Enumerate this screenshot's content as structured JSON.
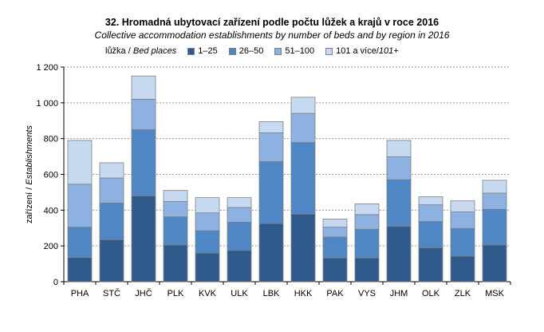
{
  "chart_data": {
    "type": "bar",
    "stacked": true,
    "title": "32. Hromadná ubytovací zařízení podle počtu lůžek a krajů v roce 2016",
    "subtitle": "Collective accommodation establishments by number of beds and by region in 2016",
    "ylabel_cz": "zařízení / ",
    "ylabel_en": "Establishments",
    "legend_title_cz": "lůžka / ",
    "legend_title_en": "Bed places",
    "legend_position": "top",
    "grid": true,
    "ylim": [
      0,
      1200
    ],
    "yticks": [
      "0",
      "200",
      "400",
      "600",
      "800",
      "1 000",
      "1 200"
    ],
    "categories": [
      "PHA",
      "STČ",
      "JHČ",
      "PLK",
      "KVK",
      "ULK",
      "LBK",
      "HKK",
      "PAK",
      "VYS",
      "JHM",
      "OLK",
      "ZLK",
      "MSK"
    ],
    "series": [
      {
        "name": "1–25",
        "color": "#2e5a8c",
        "values": [
          135,
          235,
          480,
          205,
          160,
          175,
          325,
          378,
          133,
          133,
          310,
          190,
          143,
          205
        ]
      },
      {
        "name": "26–50",
        "color": "#4f86c6",
        "values": [
          170,
          205,
          370,
          158,
          125,
          158,
          347,
          400,
          117,
          160,
          260,
          147,
          155,
          200
        ]
      },
      {
        "name": "51–100",
        "color": "#8db1e0",
        "values": [
          240,
          140,
          170,
          85,
          100,
          82,
          160,
          163,
          55,
          82,
          128,
          93,
          92,
          90
        ]
      },
      {
        "name": "101 a více/",
        "name_it": "101+",
        "color": "#c6d9f1",
        "values": [
          245,
          85,
          130,
          62,
          85,
          55,
          63,
          90,
          45,
          60,
          92,
          45,
          62,
          72
        ]
      }
    ]
  }
}
